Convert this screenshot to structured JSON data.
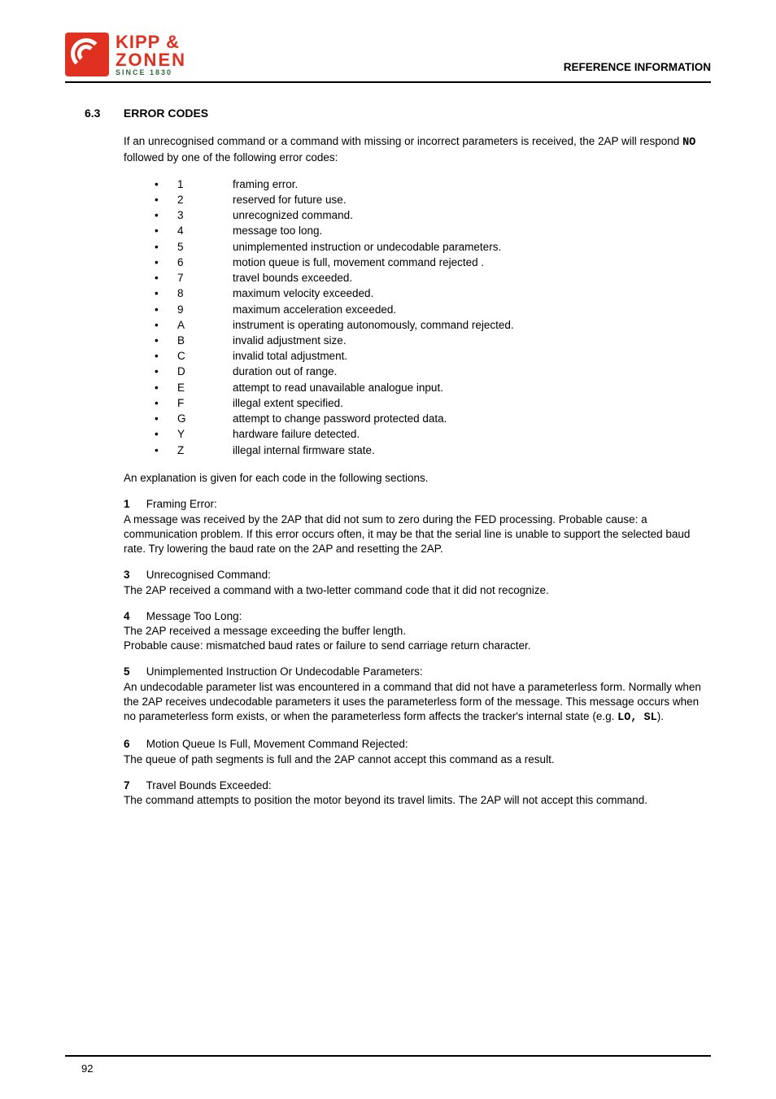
{
  "logo": {
    "line1": "KIPP &",
    "line2": "ZONEN",
    "since": "SINCE 1830"
  },
  "header": {
    "ref_info": "REFERENCE INFORMATION"
  },
  "section": {
    "number": "6.3",
    "title": "ERROR CODES"
  },
  "intro": "If an unrecognised command or a command with missing or incorrect parameters is received, the 2AP will respond ",
  "intro_mono": "NO",
  "intro_tail": " followed by one of the following error codes:",
  "error_codes": [
    {
      "code": "1",
      "desc": "framing error."
    },
    {
      "code": "2",
      "desc": "reserved for future use."
    },
    {
      "code": "3",
      "desc": "unrecognized command."
    },
    {
      "code": "4",
      "desc": "message too long."
    },
    {
      "code": "5",
      "desc": "unimplemented instruction or undecodable parameters."
    },
    {
      "code": "6",
      "desc": "motion queue is full, movement command rejected ."
    },
    {
      "code": "7",
      "desc": "travel bounds exceeded."
    },
    {
      "code": "8",
      "desc": "maximum velocity exceeded."
    },
    {
      "code": "9",
      "desc": "maximum acceleration exceeded."
    },
    {
      "code": "A",
      "desc": "instrument is operating autonomously, command rejected."
    },
    {
      "code": "B",
      "desc": "invalid adjustment size."
    },
    {
      "code": "C",
      "desc": "invalid total adjustment."
    },
    {
      "code": "D",
      "desc": "duration out of range."
    },
    {
      "code": "E",
      "desc": "attempt to read unavailable analogue input."
    },
    {
      "code": "F",
      "desc": "illegal extent specified."
    },
    {
      "code": "G",
      "desc": "attempt to change password protected data."
    },
    {
      "code": "Y",
      "desc": "hardware failure detected."
    },
    {
      "code": "Z",
      "desc": "illegal internal firmware state."
    }
  ],
  "post_list": "An explanation is given for each code in the following sections.",
  "explanations": [
    {
      "num": "1",
      "title": "Framing Error:",
      "body": "A message was received by the 2AP that did not sum to zero during the FED processing. Probable cause:  a communication problem.  If this error occurs often, it may be that the serial line is unable to support the selected baud rate.  Try lowering the baud rate on the 2AP and resetting the 2AP."
    },
    {
      "num": "3",
      "title": "Unrecognised Command:",
      "body": "The 2AP received a command with a two-letter command code that it did not recognize."
    },
    {
      "num": "4",
      "title": "Message Too Long:",
      "body": "The 2AP received a message exceeding the buffer length.\nProbable cause:  mismatched baud rates or failure to send carriage return character."
    },
    {
      "num": "5",
      "title": "Unimplemented Instruction Or Undecodable Parameters:",
      "body_pre": "An undecodable parameter list was encountered in a command that did not have a parameterless form.  Normally when the 2AP receives undecodable parameters it uses the parameterless form of the message.  This message occurs when no parameterless form exists, or when the parameterless form affects the tracker's internal state (e.g. ",
      "body_mono": "LO, SL",
      "body_post": ")."
    },
    {
      "num": "6",
      "title": "Motion Queue Is Full, Movement Command Rejected:",
      "body": "The queue of path segments is full and the 2AP cannot accept this command as a result."
    },
    {
      "num": "7",
      "title": "Travel Bounds Exceeded:",
      "body": "The command attempts to position the motor beyond its travel limits.  The 2AP will not accept this command."
    }
  ],
  "page_number": "92",
  "colors": {
    "logo_red": "#e03020",
    "logo_green": "#2d6b3a",
    "text": "#000000",
    "bg": "#ffffff"
  },
  "fonts": {
    "body_size_pt": 10,
    "heading_size_pt": 10.5,
    "logo_size_pt": 16
  }
}
